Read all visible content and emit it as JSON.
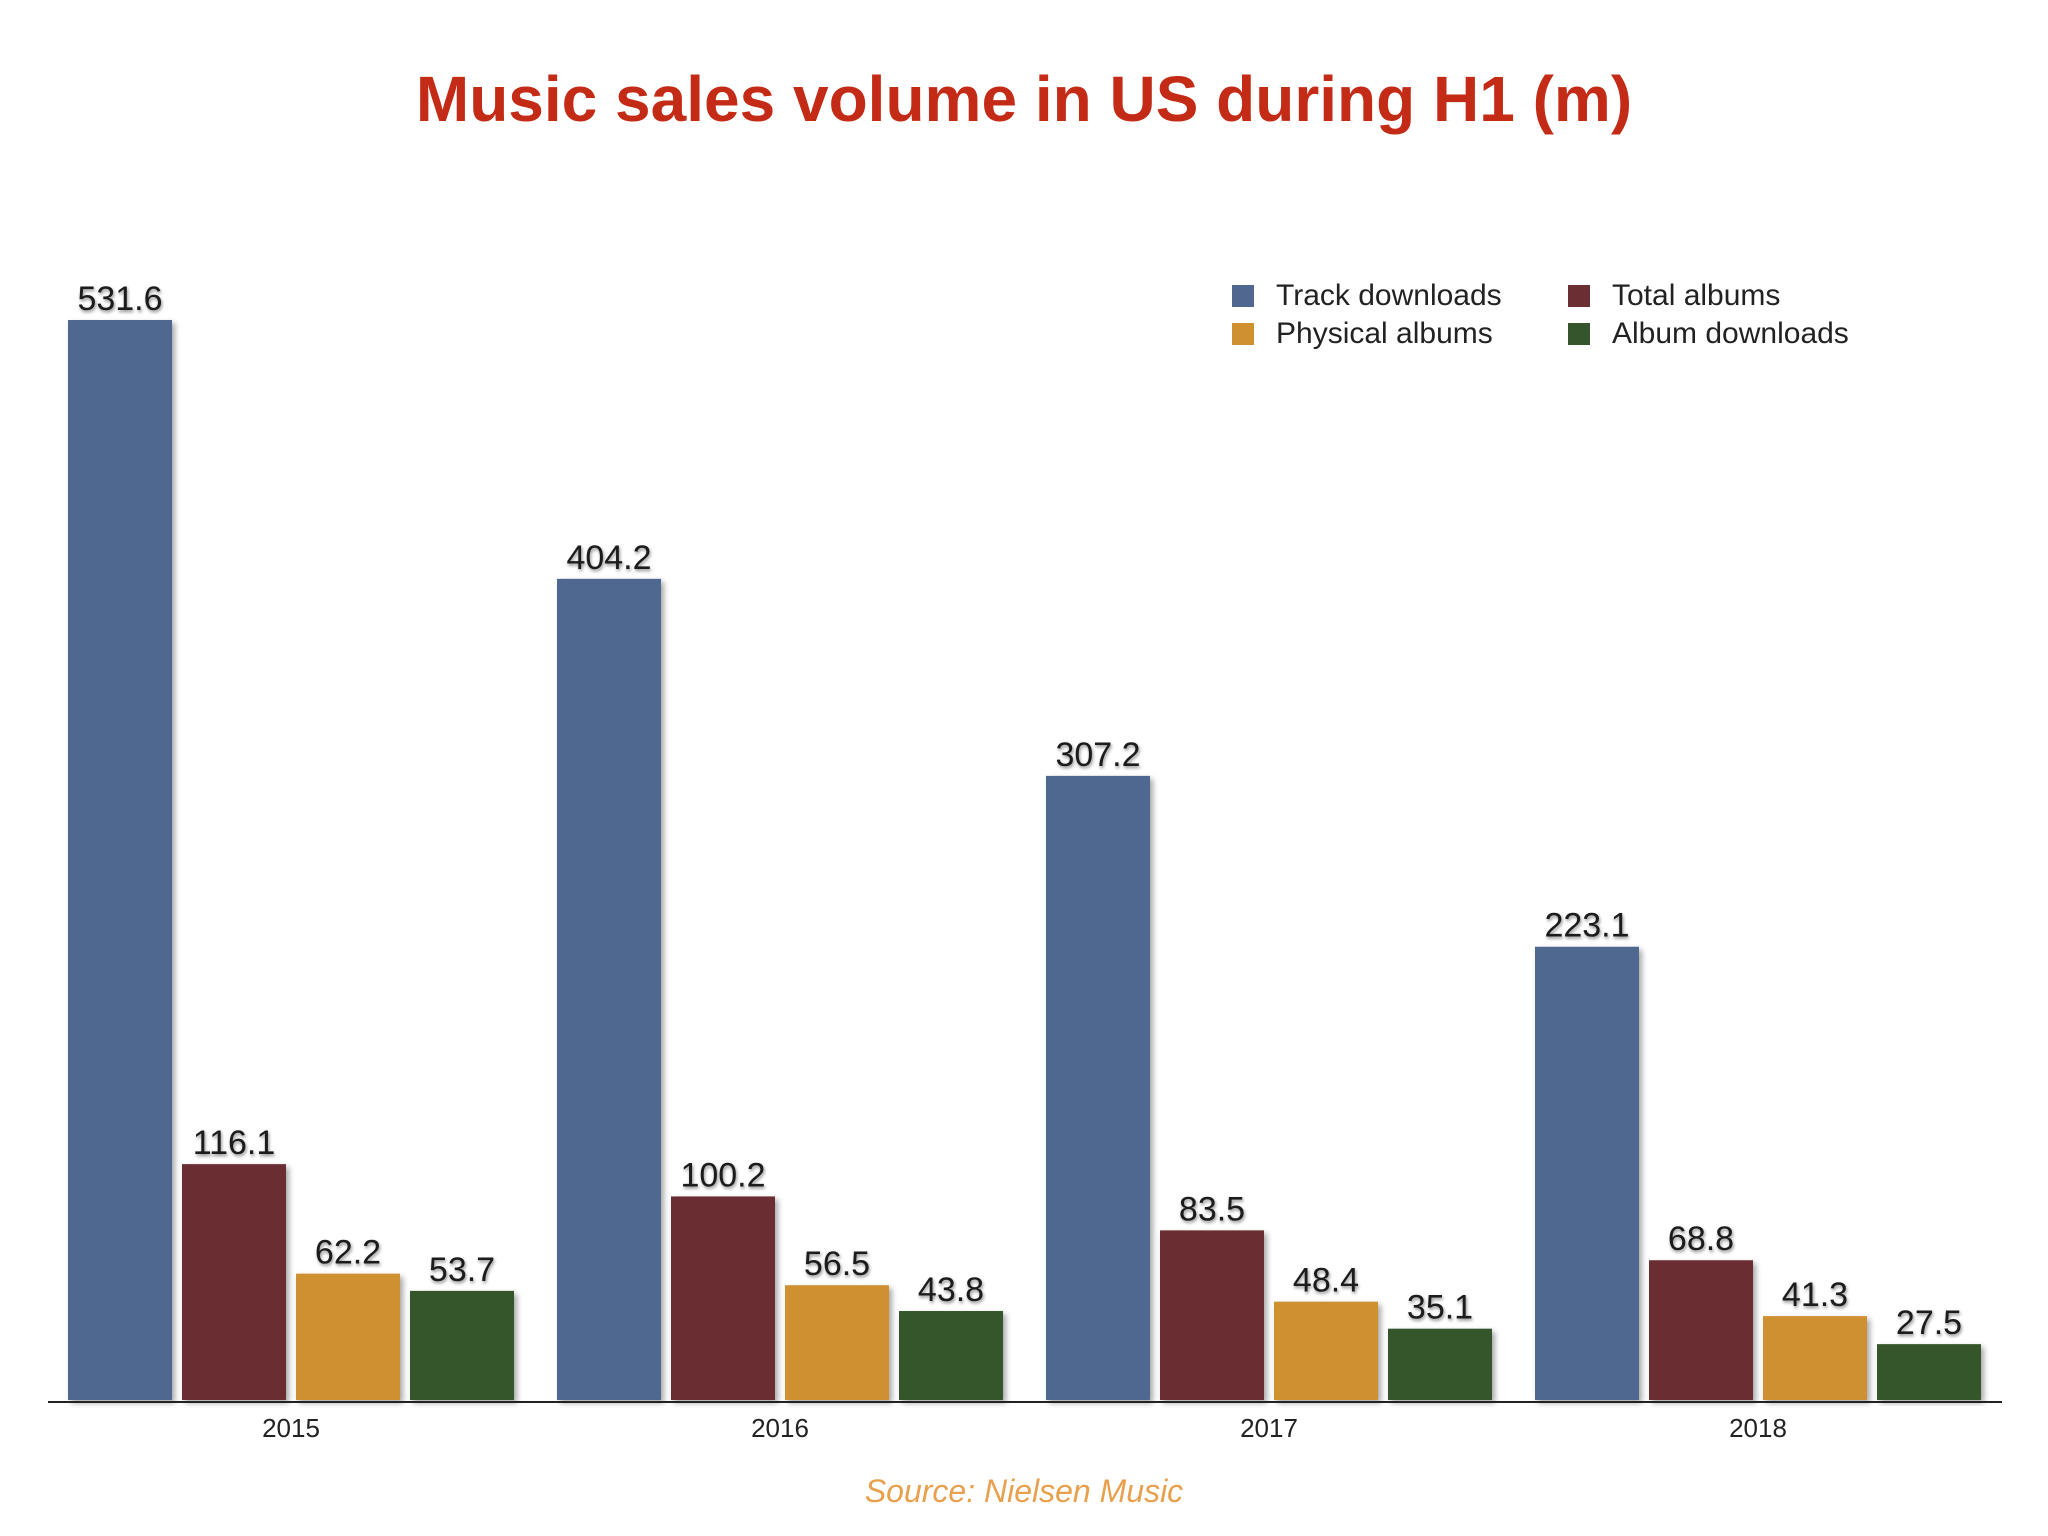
{
  "chart_data": {
    "type": "bar",
    "title": "Music sales volume in US during H1 (m)",
    "categories": [
      "2015",
      "2016",
      "2017",
      "2018"
    ],
    "series": [
      {
        "name": "Track downloads",
        "color": "#50688f",
        "values": [
          531.6,
          404.2,
          307.2,
          223.1
        ],
        "labels": [
          "531.6",
          "404.2",
          "307.2",
          "223.1"
        ]
      },
      {
        "name": "Total albums",
        "color": "#6b2f33",
        "values": [
          116.1,
          100.2,
          83.5,
          68.8
        ],
        "labels": [
          "116.1",
          "100.2",
          "83.5",
          "68.8"
        ]
      },
      {
        "name": "Physical albums",
        "color": "#cf9030",
        "values": [
          62.2,
          56.5,
          48.4,
          41.3
        ],
        "labels": [
          "62.2",
          "56.5",
          "48.4",
          "41.3"
        ]
      },
      {
        "name": "Album downloads",
        "color": "#35552c",
        "values": [
          53.7,
          43.8,
          35.1,
          27.5
        ],
        "labels": [
          "53.7",
          "43.8",
          "35.1",
          "27.5"
        ]
      }
    ],
    "xlabel": "",
    "ylabel": "",
    "ylim": [
      0,
      531.6
    ],
    "grid": false,
    "legend_position": "top-right"
  },
  "source": "Source: Nielsen Music"
}
